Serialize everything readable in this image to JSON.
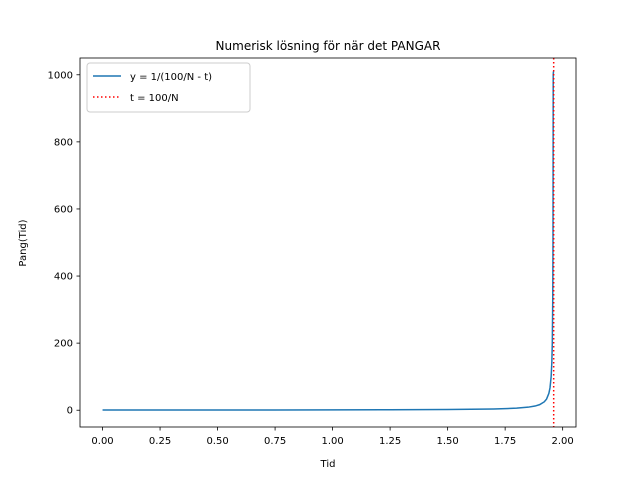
{
  "chart_data": {
    "type": "line",
    "title": "Numerisk lösning för när det PANGAR",
    "xlabel": "Tid",
    "ylabel": "Pang(Tid)",
    "xlim": [
      -0.098,
      2.058
    ],
    "ylim": [
      -50,
      1050
    ],
    "xticks": [
      "0.00",
      "0.25",
      "0.50",
      "0.75",
      "1.00",
      "1.25",
      "1.50",
      "1.75",
      "2.00"
    ],
    "yticks": [
      "0",
      "200",
      "400",
      "600",
      "800",
      "1000"
    ],
    "grid": false,
    "legend_position": "upper-left",
    "series": [
      {
        "name": "y = 1/(100/N - t)",
        "style": "solid",
        "color": "#1f77b4",
        "x": [
          0.0,
          0.25,
          0.5,
          0.75,
          1.0,
          1.25,
          1.5,
          1.6,
          1.7,
          1.75,
          1.8,
          1.85,
          1.88,
          1.9,
          1.92,
          1.93,
          1.94,
          1.945,
          1.95,
          1.953,
          1.955,
          1.957,
          1.958,
          1.959,
          1.96
        ],
        "y": [
          0.51,
          0.58,
          0.68,
          0.83,
          1.04,
          1.4,
          2.16,
          2.77,
          3.85,
          4.76,
          6.25,
          9.09,
          12.5,
          16.7,
          25.0,
          33.3,
          50.0,
          66.7,
          100,
          143,
          200,
          333,
          500,
          1000,
          1010
        ]
      },
      {
        "name": "t = 100/N",
        "style": "dotted",
        "color": "#ff0000",
        "vline_x": 1.961
      }
    ]
  }
}
